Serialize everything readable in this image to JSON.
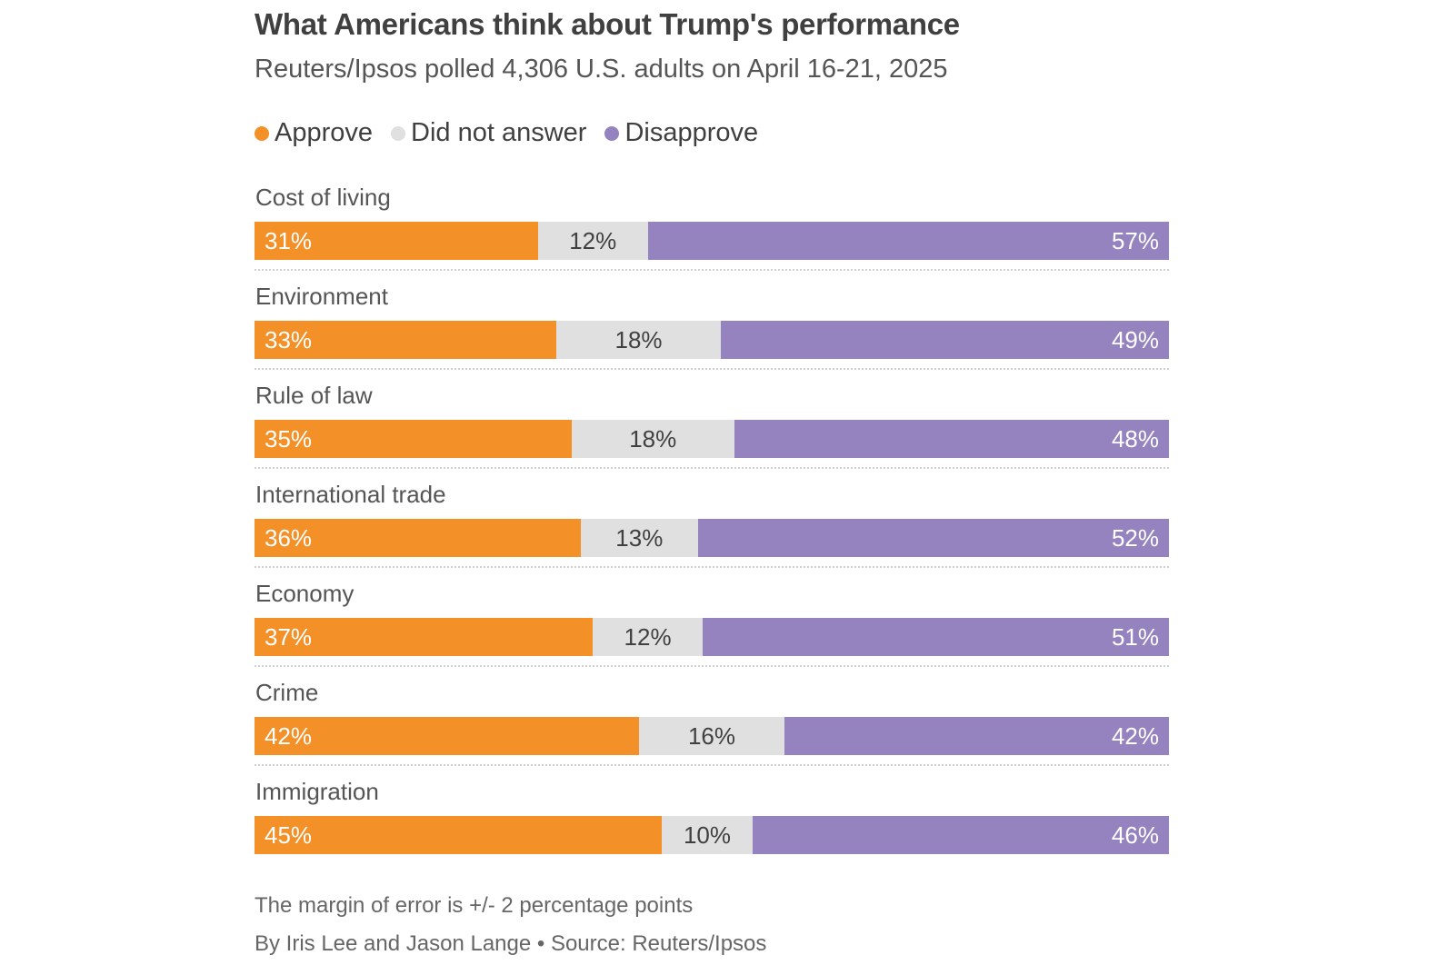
{
  "chart_data": {
    "type": "bar",
    "orientation": "horizontal",
    "stacked": true,
    "normalized_to": 100,
    "title": "What Americans think about Trump's performance",
    "subtitle": "Reuters/Ipsos polled 4,306 U.S. adults on April 16-21, 2025",
    "xlabel": "",
    "ylabel": "",
    "xlim": [
      0,
      100
    ],
    "grid": false,
    "legend_position": "top-left",
    "legend": [
      {
        "name": "Approve",
        "color": "#F39028"
      },
      {
        "name": "Did not answer",
        "color": "#E0E0E0"
      },
      {
        "name": "Disapprove",
        "color": "#9583C0"
      }
    ],
    "categories": [
      "Cost of living",
      "Environment",
      "Rule of law",
      "International trade",
      "Economy",
      "Crime",
      "Immigration"
    ],
    "series": [
      {
        "name": "Approve",
        "color": "#F39028",
        "values": [
          31,
          33,
          35,
          36,
          37,
          42,
          45
        ]
      },
      {
        "name": "Did not answer",
        "color": "#E0E0E0",
        "values": [
          12,
          18,
          18,
          13,
          12,
          16,
          10
        ]
      },
      {
        "name": "Disapprove",
        "color": "#9583C0",
        "values": [
          57,
          49,
          48,
          52,
          51,
          42,
          46
        ]
      }
    ],
    "value_suffix": "%",
    "footnote": "The margin of error is +/- 2 percentage points",
    "byline": "By Iris Lee and Jason Lange • Source: Reuters/Ipsos"
  }
}
